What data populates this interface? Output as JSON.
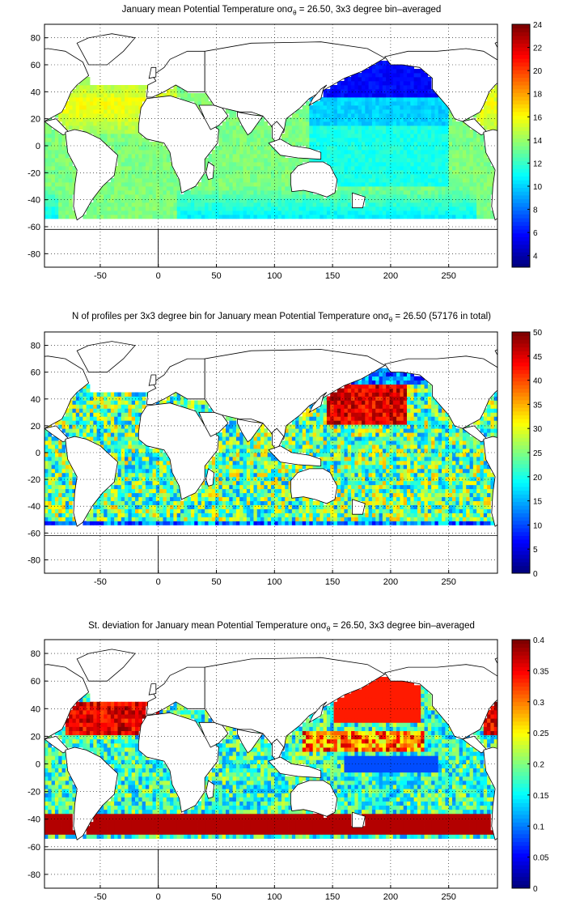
{
  "chart_data": [
    {
      "type": "heatmap",
      "title": "January mean Potential Temperature on",
      "title_sigma_symbol": "σ",
      "title_sigma_sub": "θ",
      "title_tail": " = 26.50, 3x3 degree bin–averaged",
      "x_ticks": [
        "-50",
        "0",
        "50",
        "100",
        "150",
        "200",
        "250"
      ],
      "x_tick_values": [
        -50,
        0,
        50,
        100,
        150,
        200,
        250
      ],
      "y_ticks": [
        "80",
        "60",
        "40",
        "20",
        "0",
        "-20",
        "-40",
        "-60",
        "-80"
      ],
      "y_tick_values": [
        80,
        60,
        40,
        20,
        0,
        -20,
        -40,
        -60,
        -80
      ],
      "xlim": [
        -98,
        292
      ],
      "ylim": [
        -90,
        90
      ],
      "colorbar_ticks": [
        "24",
        "22",
        "20",
        "18",
        "16",
        "14",
        "12",
        "10",
        "8",
        "6",
        "4"
      ],
      "colorbar_tick_values": [
        24,
        22,
        20,
        18,
        16,
        14,
        12,
        10,
        8,
        6,
        4
      ],
      "crange": [
        3,
        24
      ],
      "grid": true,
      "colormap": "jet",
      "field": "temperature"
    },
    {
      "type": "heatmap",
      "title": "N of profiles per 3x3 degree bin for January mean Potential Temperature on",
      "title_sigma_symbol": "σ",
      "title_sigma_sub": "θ",
      "title_tail": " = 26.50 (57176 in total)",
      "x_ticks": [
        "-50",
        "0",
        "50",
        "100",
        "150",
        "200",
        "250"
      ],
      "x_tick_values": [
        -50,
        0,
        50,
        100,
        150,
        200,
        250
      ],
      "y_ticks": [
        "80",
        "60",
        "40",
        "20",
        "0",
        "-20",
        "-40",
        "-60",
        "-80"
      ],
      "y_tick_values": [
        80,
        60,
        40,
        20,
        0,
        -20,
        -40,
        -60,
        -80
      ],
      "xlim": [
        -98,
        292
      ],
      "ylim": [
        -90,
        90
      ],
      "colorbar_ticks": [
        "50",
        "45",
        "40",
        "35",
        "30",
        "25",
        "20",
        "15",
        "10",
        "5",
        "0"
      ],
      "colorbar_tick_values": [
        50,
        45,
        40,
        35,
        30,
        25,
        20,
        15,
        10,
        5,
        0
      ],
      "crange": [
        0,
        50
      ],
      "grid": true,
      "colormap": "jet",
      "field": "count"
    },
    {
      "type": "heatmap",
      "title": "St. deviation for January mean Potential Temperature on",
      "title_sigma_symbol": "σ",
      "title_sigma_sub": "θ",
      "title_tail": " = 26.50, 3x3 degree bin–averaged",
      "x_ticks": [
        "-50",
        "0",
        "50",
        "100",
        "150",
        "200",
        "250"
      ],
      "x_tick_values": [
        -50,
        0,
        50,
        100,
        150,
        200,
        250
      ],
      "y_ticks": [
        "80",
        "60",
        "40",
        "20",
        "0",
        "-20",
        "-40",
        "-60",
        "-80"
      ],
      "y_tick_values": [
        80,
        60,
        40,
        20,
        0,
        -20,
        -40,
        -60,
        -80
      ],
      "xlim": [
        -98,
        292
      ],
      "ylim": [
        -90,
        90
      ],
      "colorbar_ticks": [
        "0.4",
        "0.35",
        "0.3",
        "0.25",
        "0.2",
        "0.15",
        "0.1",
        "0.05",
        "0"
      ],
      "colorbar_tick_values": [
        0.4,
        0.35,
        0.3,
        0.25,
        0.2,
        0.15,
        0.1,
        0.05,
        0
      ],
      "crange": [
        0,
        0.4
      ],
      "grid": true,
      "colormap": "jet",
      "field": "stdev"
    }
  ]
}
